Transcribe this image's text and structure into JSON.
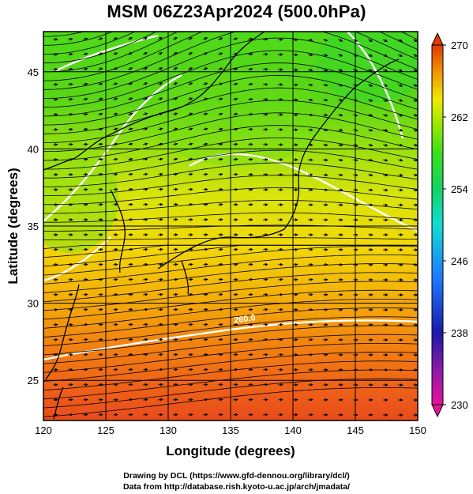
{
  "title": "MSM 06Z23Apr2024 (500.0hPa)",
  "credits": {
    "line1": "Drawing by DCL (https://www.gfd-dennou.org/library/dcl/)",
    "line2": "Data from http://database.rish.kyoto-u.ac.jp/arch/jmadata/"
  },
  "map": {
    "xlabel": "Longitude (degrees)",
    "ylabel": "Latitude  (degrees)",
    "lon_range": [
      120,
      150
    ],
    "lat_range": [
      22.4,
      47.6
    ],
    "xticks": [
      120,
      125,
      130,
      135,
      140,
      145,
      150
    ],
    "yticks": [
      25,
      30,
      35,
      40,
      45
    ],
    "field": "temperature shading with wind streamlines",
    "contour_label": "260.0",
    "contour_label_position": {
      "lon": 135.3,
      "lat": 28.7
    }
  },
  "colorbar": {
    "min": 230,
    "max": 270,
    "labels": [
      "270",
      "262",
      "254",
      "246",
      "238",
      "230"
    ],
    "label_values": [
      270,
      262,
      254,
      246,
      238,
      230
    ],
    "colors": [
      "#e8119a",
      "#1a1aa8",
      "#1e3cd2",
      "#1e9bff",
      "#12dcd2",
      "#14d264",
      "#3ae01a",
      "#9be800",
      "#f0e800",
      "#f0a800",
      "#f06a00",
      "#e23a00"
    ]
  }
}
